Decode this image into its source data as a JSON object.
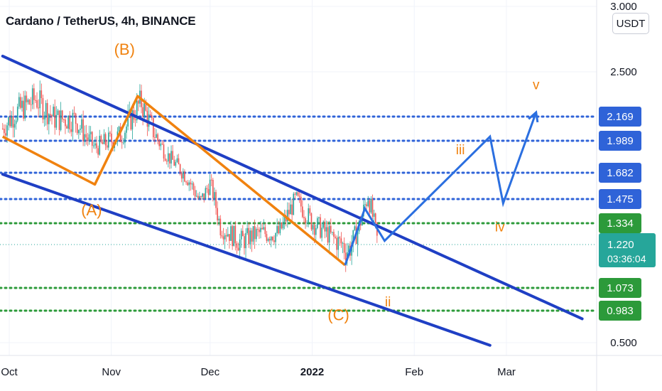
{
  "header": {
    "title": "Cardano / TetherUS, 4h, BINANCE",
    "unit": "USDT"
  },
  "colors": {
    "channel": "#1f3fc4",
    "wave": "#f0820f",
    "projection": "#2b6fe0",
    "level_blue": "#2f63d8",
    "level_green": "#2c9a3a",
    "candle_up": "#26a69a",
    "candle_down": "#ef5350",
    "price_tag": "#26a69a"
  },
  "chart_data": {
    "type": "candlestick",
    "x_axis": {
      "ticks": [
        {
          "label": "Oct",
          "date": "2021-10-01"
        },
        {
          "label": "Nov",
          "date": "2021-11-01"
        },
        {
          "label": "Dec",
          "date": "2021-12-01"
        },
        {
          "label": "2022",
          "date": "2022-01-01",
          "bold": true
        },
        {
          "label": "Feb",
          "date": "2022-02-01"
        },
        {
          "label": "Mar",
          "date": "2022-03-01"
        }
      ]
    },
    "y_axis": {
      "ticks": [
        "3.000",
        "2.500",
        "0.500"
      ],
      "range": [
        0.4,
        3.0
      ]
    },
    "price_path": [
      {
        "date": "2021-09-29",
        "price": 2.08
      },
      {
        "date": "2021-10-03",
        "price": 2.2
      },
      {
        "date": "2021-10-09",
        "price": 2.3
      },
      {
        "date": "2021-10-15",
        "price": 2.15
      },
      {
        "date": "2021-10-21",
        "price": 2.15
      },
      {
        "date": "2021-10-27",
        "price": 1.92
      },
      {
        "date": "2021-11-04",
        "price": 2.03
      },
      {
        "date": "2021-11-10",
        "price": 2.28
      },
      {
        "date": "2021-11-13",
        "price": 2.1
      },
      {
        "date": "2021-11-18",
        "price": 1.85
      },
      {
        "date": "2021-11-24",
        "price": 1.65
      },
      {
        "date": "2021-11-28",
        "price": 1.45
      },
      {
        "date": "2021-12-01",
        "price": 1.6
      },
      {
        "date": "2021-12-04",
        "price": 1.32
      },
      {
        "date": "2021-12-10",
        "price": 1.24
      },
      {
        "date": "2021-12-16",
        "price": 1.28
      },
      {
        "date": "2021-12-22",
        "price": 1.28
      },
      {
        "date": "2021-12-27",
        "price": 1.48
      },
      {
        "date": "2022-01-01",
        "price": 1.34
      },
      {
        "date": "2022-01-07",
        "price": 1.26
      },
      {
        "date": "2022-01-12",
        "price": 1.2
      },
      {
        "date": "2022-01-15",
        "price": 1.3
      },
      {
        "date": "2022-01-18",
        "price": 1.5
      },
      {
        "date": "2022-01-21",
        "price": 1.22
      }
    ],
    "levels": [
      {
        "label": "2.169",
        "value": 2.169,
        "color": "blue"
      },
      {
        "label": "1.989",
        "value": 1.989,
        "color": "blue"
      },
      {
        "label": "1.682",
        "value": 1.682,
        "color": "blue"
      },
      {
        "label": "1.475",
        "value": 1.475,
        "color": "blue"
      },
      {
        "label": "1.334",
        "value": 1.334,
        "color": "green"
      },
      {
        "label": "1.073",
        "value": 1.073,
        "color": "green"
      },
      {
        "label": "0.983",
        "value": 0.983,
        "color": "green"
      }
    ],
    "last_price": {
      "label": "1.220",
      "value": 1.22,
      "countdown": "03:36:04"
    },
    "channel_lines": [
      {
        "start": {
          "date": "2021-09-29",
          "price": 2.62
        },
        "end": {
          "date": "2022-03-24",
          "price": 0.86
        }
      },
      {
        "start": {
          "date": "2021-09-29",
          "price": 1.67
        },
        "end": {
          "date": "2022-02-24",
          "price": 0.46
        }
      }
    ],
    "wave_abc": {
      "points": [
        {
          "date": "2021-09-29",
          "price": 2.02
        },
        {
          "date": "2021-10-27",
          "price": 1.59
        },
        {
          "date": "2021-11-09",
          "price": 2.32
        },
        {
          "date": "2022-01-11",
          "price": 1.15
        }
      ],
      "labels": [
        {
          "text": "(A)",
          "date": "2021-10-26",
          "price": 1.38
        },
        {
          "text": "(B)",
          "date": "2021-11-05",
          "price": 2.63
        },
        {
          "text": "(C)",
          "date": "2022-01-09",
          "price": 0.84
        }
      ]
    },
    "projection": {
      "points": [
        {
          "date": "2022-01-11",
          "price": 1.15
        },
        {
          "date": "2022-01-17",
          "price": 1.42
        },
        {
          "date": "2022-01-23",
          "price": 1.24
        },
        {
          "date": "2022-02-24",
          "price": 2.02
        },
        {
          "date": "2022-02-28",
          "price": 1.45
        },
        {
          "date": "2022-03-10",
          "price": 2.2
        }
      ],
      "labels": [
        {
          "text": "ii",
          "date": "2022-01-24",
          "price": 1.0
        },
        {
          "text": "iii",
          "date": "2022-02-15",
          "price": 1.86
        },
        {
          "text": "iv",
          "date": "2022-02-27",
          "price": 1.29
        },
        {
          "text": "v",
          "date": "2022-03-10",
          "price": 2.37
        }
      ]
    }
  }
}
